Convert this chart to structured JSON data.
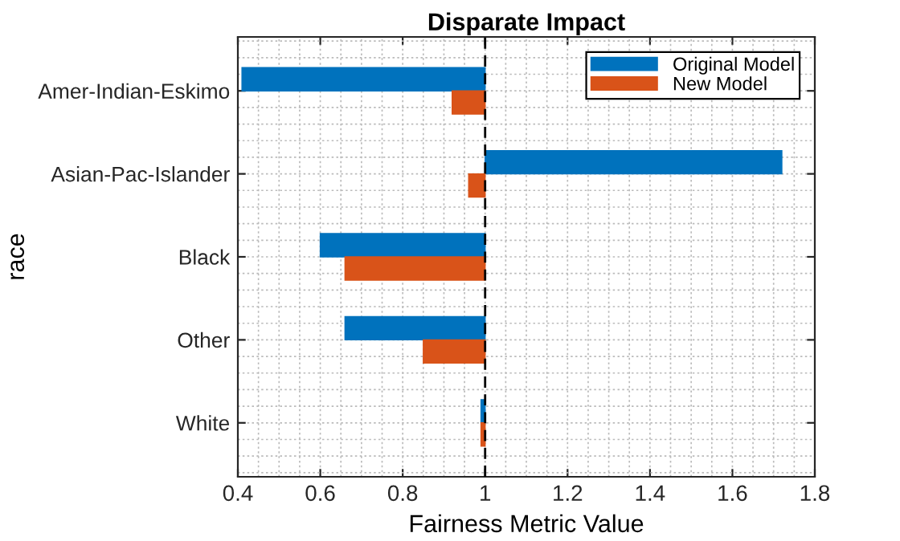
{
  "chart_data": {
    "type": "bar",
    "orientation": "horizontal",
    "title": "Disparate Impact",
    "xlabel": "Fairness Metric Value",
    "ylabel": "race",
    "categories": [
      "Amer-Indian-Eskimo",
      "Asian-Pac-Islander",
      "Black",
      "Other",
      "White"
    ],
    "series": [
      {
        "name": "Original Model",
        "color": "#0072bd",
        "base": [
          1,
          1,
          1,
          1,
          1
        ],
        "values": [
          -0.59,
          0.72,
          -0.4,
          -0.34,
          -0.01
        ]
      },
      {
        "name": "New Model",
        "color": "#d95319",
        "base": [
          1,
          1,
          1,
          1,
          1
        ],
        "values": [
          -0.08,
          -0.04,
          -0.34,
          -0.15,
          -0.01
        ]
      }
    ],
    "xlim": [
      0.4,
      1.8
    ],
    "xticks": [
      0.4,
      0.6,
      0.8,
      1,
      1.2,
      1.4,
      1.6,
      1.8
    ],
    "ref_lines": [
      {
        "axis": "x",
        "value": 1,
        "color": "#000000",
        "line_style": "dashed"
      }
    ],
    "grid": true,
    "legend": "top right"
  }
}
